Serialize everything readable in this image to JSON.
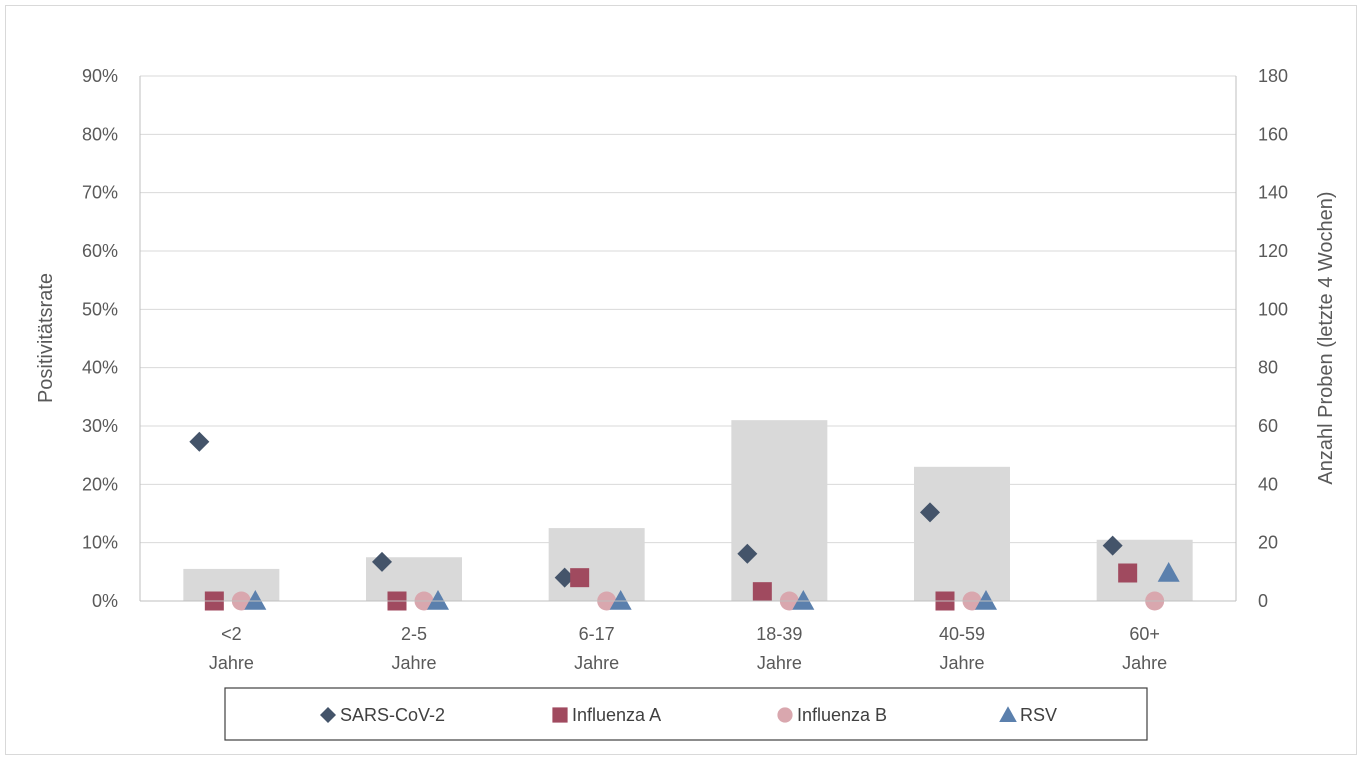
{
  "chart_data": {
    "type": "bar",
    "categories": [
      [
        "<2",
        "Jahre"
      ],
      [
        "2-5",
        "Jahre"
      ],
      [
        "6-17",
        "Jahre"
      ],
      [
        "18-39",
        "Jahre"
      ],
      [
        "40-59",
        "Jahre"
      ],
      [
        "60+",
        "Jahre"
      ]
    ],
    "bars": {
      "values": [
        11,
        15,
        25,
        62,
        46,
        21
      ],
      "color": "#d9d9d9"
    },
    "series": [
      {
        "name": "SARS-CoV-2",
        "marker": "diamond",
        "color": "#44546a",
        "values": [
          27.3,
          6.7,
          4.0,
          8.1,
          15.2,
          9.5
        ]
      },
      {
        "name": "Influenza A",
        "marker": "square",
        "color": "#a04a5f",
        "values": [
          0,
          0,
          4.0,
          1.6,
          0,
          4.8
        ]
      },
      {
        "name": "Influenza B",
        "marker": "circle",
        "color": "#d9a7ae",
        "values": [
          0,
          0,
          0,
          0,
          0,
          0
        ]
      },
      {
        "name": "RSV",
        "marker": "triangle",
        "color": "#5b80ad",
        "values": [
          0,
          0,
          0,
          0,
          0,
          4.8
        ]
      }
    ],
    "ylabel": "Positivitätsrate",
    "y2label": "Anzahl Proben (letzte 4 Wochen)",
    "ylim": [
      0,
      90
    ],
    "yticks": [
      "0%",
      "10%",
      "20%",
      "30%",
      "40%",
      "50%",
      "60%",
      "70%",
      "80%",
      "90%"
    ],
    "y2lim": [
      0,
      180
    ],
    "y2ticks": [
      "0",
      "20",
      "40",
      "60",
      "80",
      "100",
      "120",
      "140",
      "160",
      "180"
    ],
    "grid": true,
    "legend_position": "bottom"
  }
}
